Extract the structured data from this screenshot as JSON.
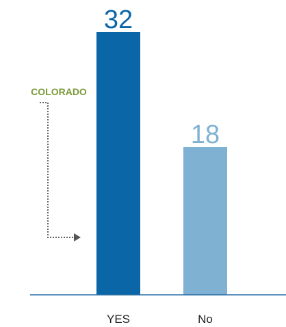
{
  "chart_data": {
    "type": "bar",
    "categories": [
      "YES",
      "No"
    ],
    "values": [
      32,
      18
    ],
    "bar_colors": [
      "#0b66a8",
      "#7fb1d3"
    ],
    "value_label_colors": [
      "#0b66a8",
      "#7fb1d3"
    ],
    "ylim": [
      0,
      32
    ],
    "grid": false,
    "annotation": {
      "text": "COLORADO",
      "color": "#7a9a3a",
      "points_to": "YES"
    },
    "axis_color": "#2a6ea6"
  }
}
